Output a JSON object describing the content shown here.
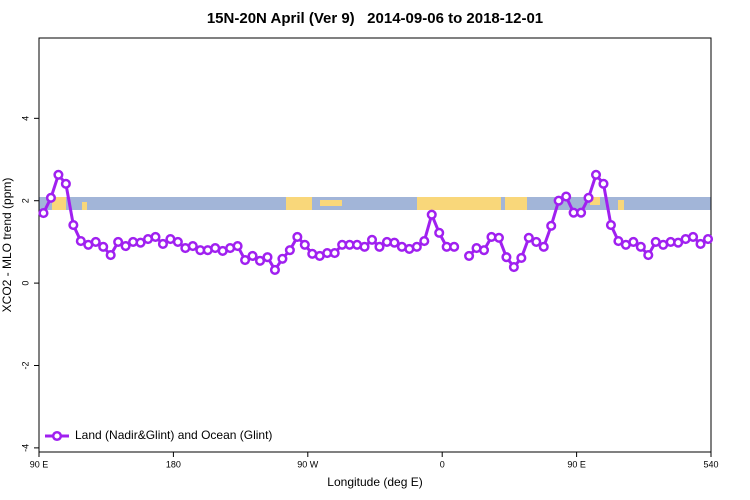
{
  "chart_data": {
    "type": "line",
    "title": "15N-20N April (Ver 9)   2014-09-06 to 2018-12-01",
    "x_label": "Longitude (deg E)",
    "y_label": "XCO2 - MLO trend (ppm)",
    "x": [
      93,
      98,
      103,
      108,
      113,
      118,
      123,
      128,
      133,
      138,
      143,
      148,
      153,
      158,
      163,
      168,
      173,
      178,
      183,
      188,
      193,
      198,
      203,
      208,
      213,
      218,
      223,
      228,
      233,
      238,
      243,
      248,
      253,
      258,
      263,
      268,
      273,
      278,
      283,
      288,
      293,
      298,
      303,
      308,
      313,
      318,
      323,
      328,
      333,
      338,
      343,
      348,
      353,
      358,
      363,
      368,
      373,
      378,
      383,
      388,
      393,
      398,
      403,
      408,
      413,
      418,
      423,
      428,
      433,
      438,
      443,
      448,
      453,
      458,
      463,
      468,
      473,
      478,
      483,
      488,
      493,
      498,
      503,
      508,
      513,
      518,
      523,
      528,
      533,
      538
    ],
    "series": [
      {
        "name": "Land (Nadir&Glint) and Ocean (Glint)",
        "color": "#a020f0",
        "values": [
          1.7,
          2.07,
          2.63,
          2.41,
          1.41,
          1.02,
          0.93,
          1.0,
          0.88,
          0.68,
          1.0,
          0.9,
          1.0,
          0.98,
          1.07,
          1.12,
          0.95,
          1.07,
          1.0,
          0.85,
          0.9,
          0.8,
          0.8,
          0.85,
          0.78,
          0.85,
          0.9,
          0.56,
          0.66,
          0.54,
          0.63,
          0.32,
          0.59,
          0.8,
          1.12,
          0.93,
          0.71,
          0.66,
          0.73,
          0.73,
          0.93,
          0.93,
          0.93,
          0.88,
          1.05,
          0.88,
          1.0,
          0.98,
          0.88,
          0.83,
          0.88,
          1.02,
          1.66,
          1.22,
          0.88,
          0.88,
          null,
          0.66,
          0.85,
          0.8,
          1.12,
          1.1,
          0.63,
          0.39,
          0.61,
          1.1,
          1.0,
          0.88,
          1.39,
          2.0,
          2.1,
          1.71,
          1.71,
          2.07,
          2.63,
          2.41,
          1.41,
          1.02,
          0.93,
          1.0,
          0.88,
          0.68,
          1.0,
          0.93,
          1.0,
          0.98,
          1.07,
          1.12,
          0.95,
          1.07
        ]
      }
    ],
    "xlim": [
      90,
      540
    ],
    "xticks": [
      {
        "value": 90,
        "label": "90 E"
      },
      180,
      {
        "value": 270,
        "label": "90 W"
      },
      {
        "value": 360,
        "label": "0"
      },
      {
        "value": 450,
        "label": "90 E"
      },
      540
    ],
    "ylim": [
      -4.1,
      5.95
    ],
    "yticks": [
      -4,
      -2,
      0,
      2,
      4
    ],
    "legend": "bottom-left"
  }
}
